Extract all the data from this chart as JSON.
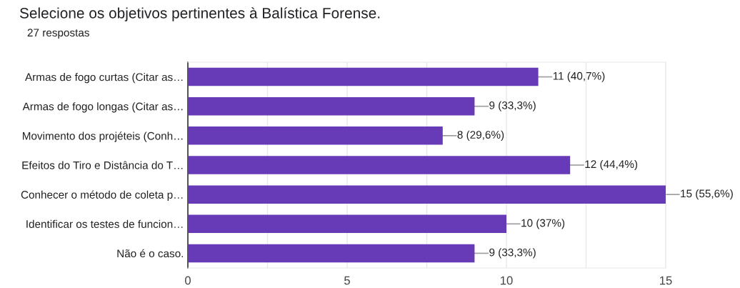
{
  "chart_data": {
    "type": "bar",
    "orientation": "horizontal",
    "title": "Selecione os objetivos pertinentes à Balística Forense.",
    "subtitle": "27 respostas",
    "categories": [
      "Armas de fogo curtas (Citar as…",
      "Armas de fogo longas (Citar as…",
      "Movimento dos projéteis (Conh…",
      "Efeitos do Tiro e Distância do T…",
      "Conhecer o método de coleta p…",
      "Identificar os testes de funcion…",
      "Não é o caso."
    ],
    "values": [
      11,
      9,
      8,
      12,
      15,
      10,
      9
    ],
    "value_labels": [
      "11 (40,7%)",
      "9 (33,3%)",
      "8 (29,6%)",
      "12 (44,4%)",
      "15 (55,6%)",
      "10 (37%)",
      "9 (33,3%)"
    ],
    "color": "#673ab7",
    "xlim": [
      0,
      15
    ],
    "xticks": [
      0,
      {
        "value": 2.5,
        "label": null
      },
      5,
      {
        "value": 7.5,
        "label": null
      },
      10,
      {
        "value": 12.5,
        "label": null
      },
      15
    ],
    "grid": "x",
    "legend": false
  }
}
